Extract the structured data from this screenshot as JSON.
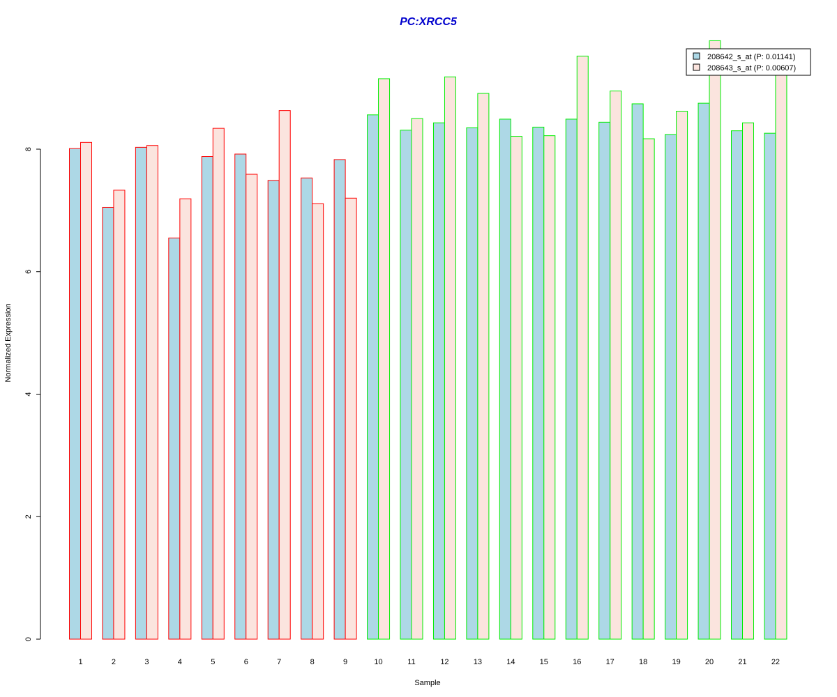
{
  "chart_data": {
    "type": "bar",
    "title": "PC:XRCC5",
    "xlabel": "Sample",
    "ylabel": "Normalized Expression",
    "ylim": [
      0,
      10
    ],
    "yticks": [
      0,
      2,
      4,
      6,
      8
    ],
    "categories": [
      "1",
      "2",
      "3",
      "4",
      "5",
      "6",
      "7",
      "8",
      "9",
      "10",
      "11",
      "12",
      "13",
      "14",
      "15",
      "16",
      "17",
      "18",
      "19",
      "20",
      "21",
      "22"
    ],
    "group_border_colors": [
      "#ff0000",
      "#ff0000",
      "#ff0000",
      "#ff0000",
      "#ff0000",
      "#ff0000",
      "#ff0000",
      "#ff0000",
      "#ff0000",
      "#00ee00",
      "#00ee00",
      "#00ee00",
      "#00ee00",
      "#00ee00",
      "#00ee00",
      "#00ee00",
      "#00ee00",
      "#00ee00",
      "#00ee00",
      "#00ee00",
      "#00ee00",
      "#00ee00"
    ],
    "series": [
      {
        "name": "208642_s_at (P: 0.01141)",
        "fill": "#add8e6",
        "values": [
          8.01,
          7.05,
          8.03,
          6.55,
          7.88,
          7.92,
          7.49,
          7.53,
          7.83,
          8.56,
          8.31,
          8.43,
          8.35,
          8.49,
          8.36,
          8.49,
          8.44,
          8.74,
          8.24,
          8.75,
          8.3,
          8.26
        ]
      },
      {
        "name": "208643_s_at (P: 0.00607)",
        "fill": "#fbe4de",
        "values": [
          8.11,
          7.33,
          8.06,
          7.19,
          8.34,
          7.59,
          8.63,
          7.11,
          7.2,
          9.15,
          8.5,
          9.18,
          8.91,
          8.21,
          8.22,
          9.52,
          8.95,
          8.17,
          8.62,
          9.77,
          8.43,
          9.6
        ]
      }
    ],
    "legend_position": "top-right",
    "grid": false,
    "title_color": "#0000cd"
  }
}
